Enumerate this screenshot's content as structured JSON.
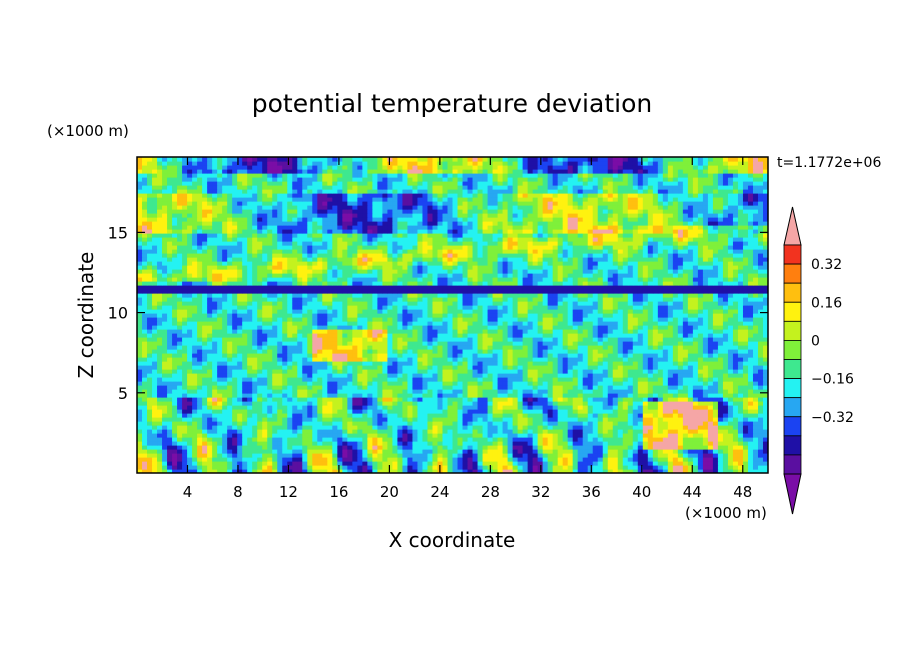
{
  "chart_data": {
    "type": "heatmap",
    "title": "potential temperature deviation",
    "xlabel": "X coordinate",
    "ylabel": "Z coordinate",
    "x_unit": "(×1000 m)",
    "y_unit": "(×1000 m)",
    "time_label": "t=1.1772e+06",
    "xlim": [
      0,
      50
    ],
    "ylim": [
      0,
      19.7
    ],
    "x_ticks": [
      "4",
      "8",
      "12",
      "16",
      "20",
      "24",
      "28",
      "32",
      "36",
      "40",
      "44",
      "48"
    ],
    "y_ticks": [
      "5",
      "10",
      "15"
    ],
    "colorbar": {
      "labels": [
        "0.32",
        "0.16",
        "0",
        "−0.16",
        "−0.32"
      ],
      "levels": [
        -0.4,
        -0.32,
        -0.24,
        -0.16,
        -0.08,
        0,
        0.08,
        0.16,
        0.24,
        0.32,
        0.4
      ],
      "colors": [
        "#7a0da6",
        "#5a0fa0",
        "#1f10a6",
        "#1b43f2",
        "#27a7f2",
        "#24f2f2",
        "#3ee88f",
        "#7ff03a",
        "#c4f21e",
        "#fff20f",
        "#ffbf0f",
        "#ff7f0f",
        "#f2331f",
        "#f5a6a6"
      ],
      "triangles": "both"
    },
    "bands": [
      {
        "z": [
          18.8,
          19.7
        ],
        "note": "upper mixed band"
      },
      {
        "z": [
          11.3,
          11.8
        ],
        "note": "thin dark band"
      },
      {
        "z": [
          0,
          4.7
        ],
        "note": "boundary layer cells"
      }
    ]
  }
}
